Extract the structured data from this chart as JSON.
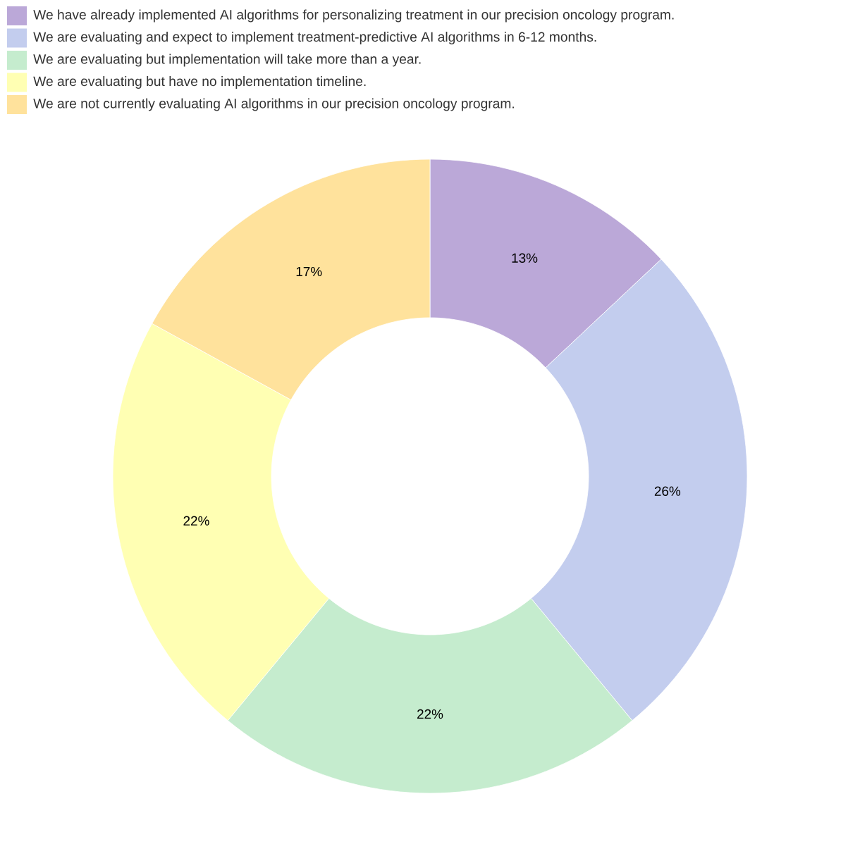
{
  "chart_data": {
    "type": "donut",
    "categories": [
      "We have already implemented AI algorithms for personalizing treatment in our precision oncology program.",
      "We are evaluating and expect to implement treatment-predictive AI algorithms in 6-12 months.",
      "We are evaluating but implementation will take more than a year.",
      "We are evaluating but have no implementation timeline.",
      "We are not currently evaluating AI algorithms in our precision oncology program."
    ],
    "values": [
      13,
      26,
      22,
      22,
      17
    ],
    "colors": [
      "#bba8d8",
      "#c3cdee",
      "#c5ecce",
      "#ffffb3",
      "#ffe29c"
    ],
    "value_labels": [
      "13%",
      "26%",
      "22%",
      "22%",
      "17%"
    ],
    "legend": "top left"
  }
}
